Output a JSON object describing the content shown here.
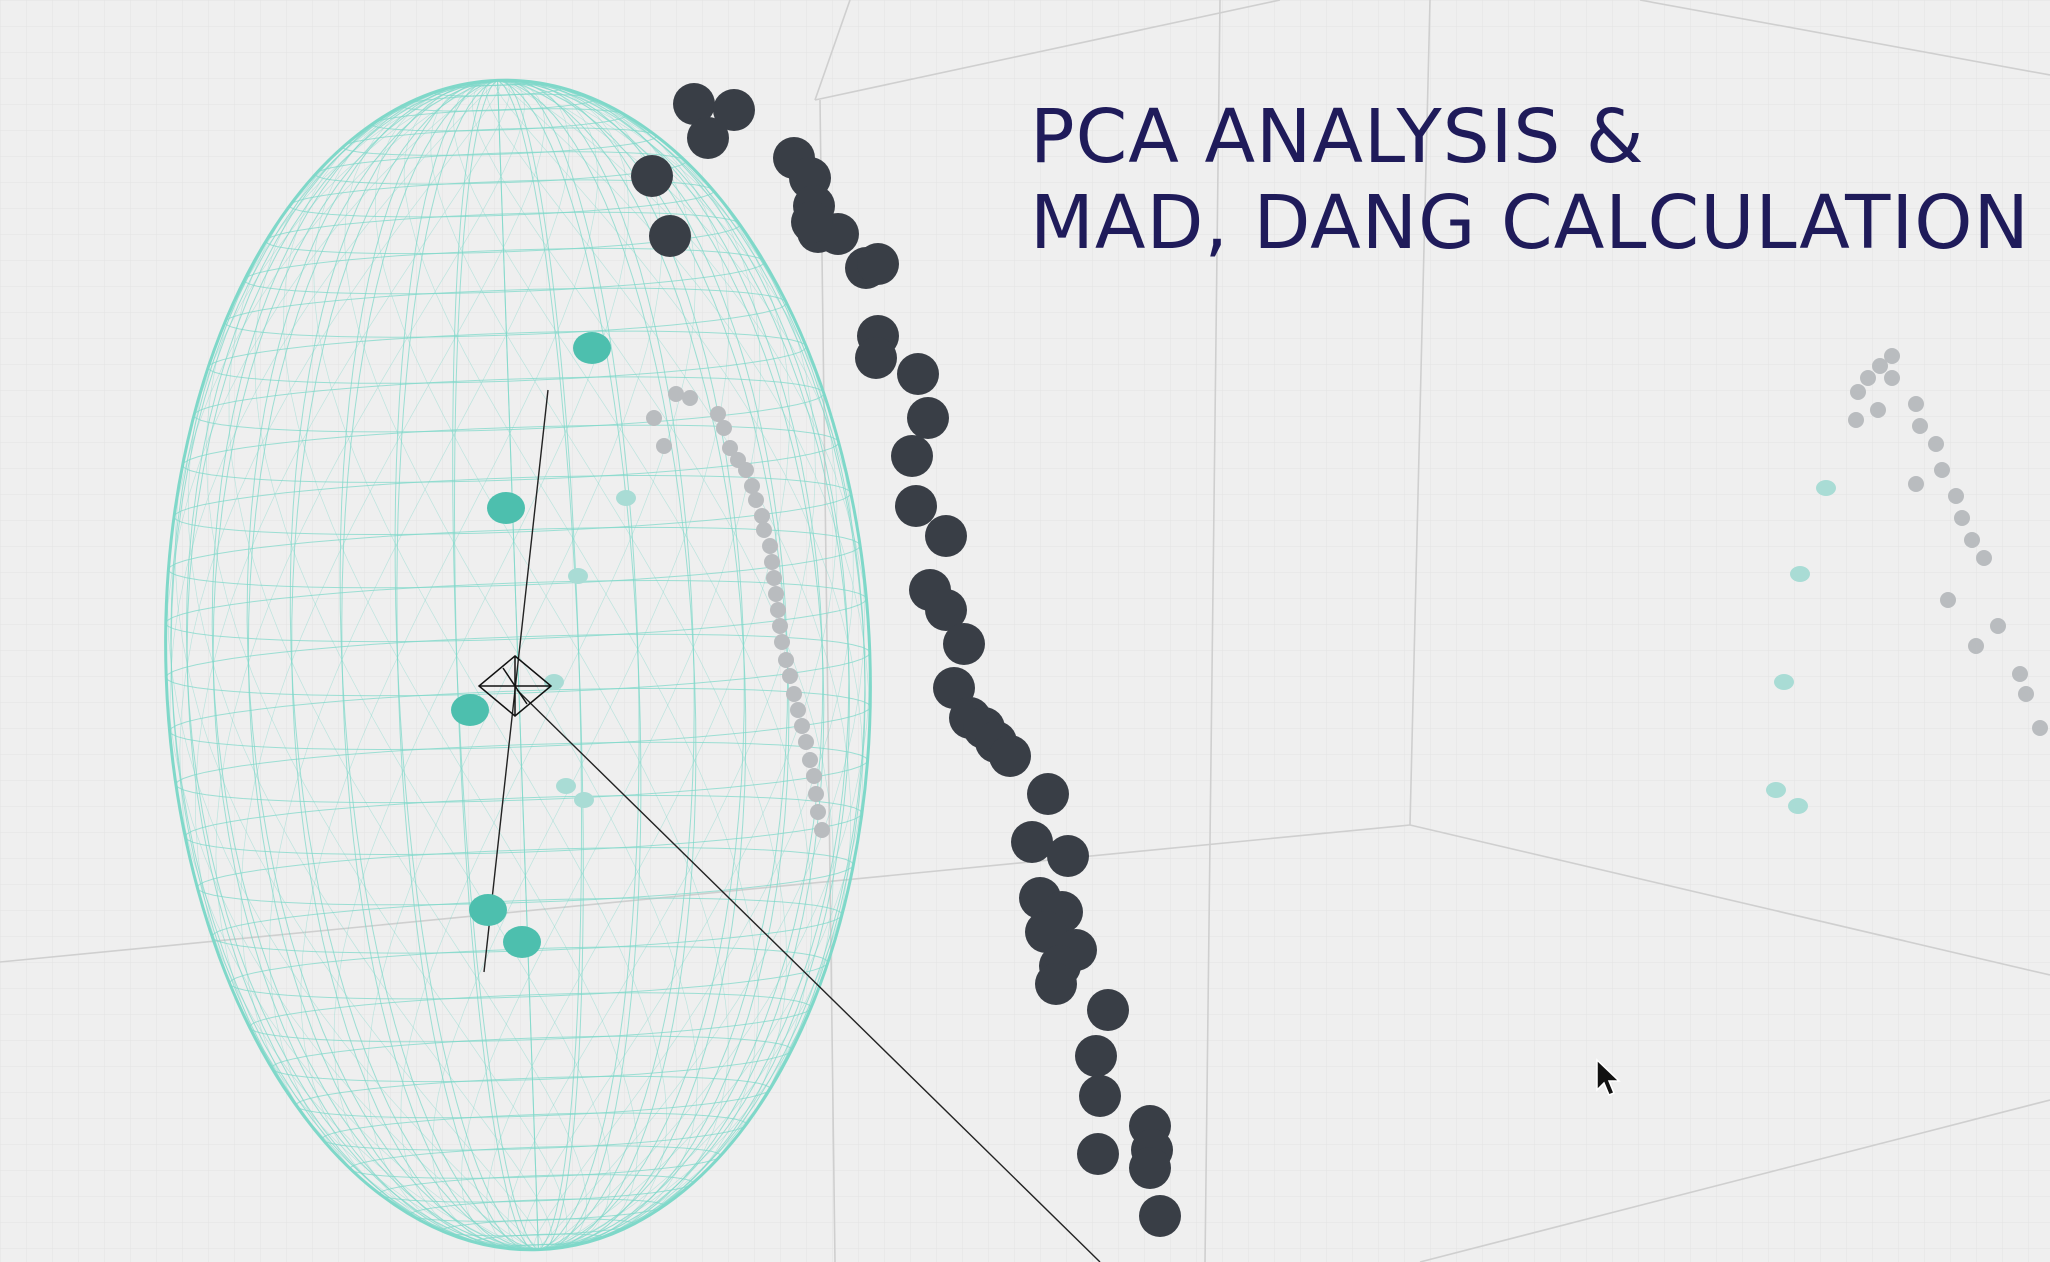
{
  "title": {
    "line1": "PCA ANALYSIS &",
    "line2": "MAD, DANG CALCULATION"
  },
  "colors": {
    "background": "#efefef",
    "grid_fine": "#e6e6e6",
    "grid_major": "#d4d4d4",
    "ellipsoid_wire": "#7fd8c9",
    "inside_point": "#4dbfae",
    "projected_inside_point": "#a9dcd5",
    "outside_point": "#393e46",
    "projected_outside_point": "#b9bcbf",
    "axis_line": "#222222",
    "title": "#1f1b5a"
  },
  "icons": {
    "centroid": "centroid-marker-icon",
    "cursor": "mouse-pointer-icon"
  }
}
